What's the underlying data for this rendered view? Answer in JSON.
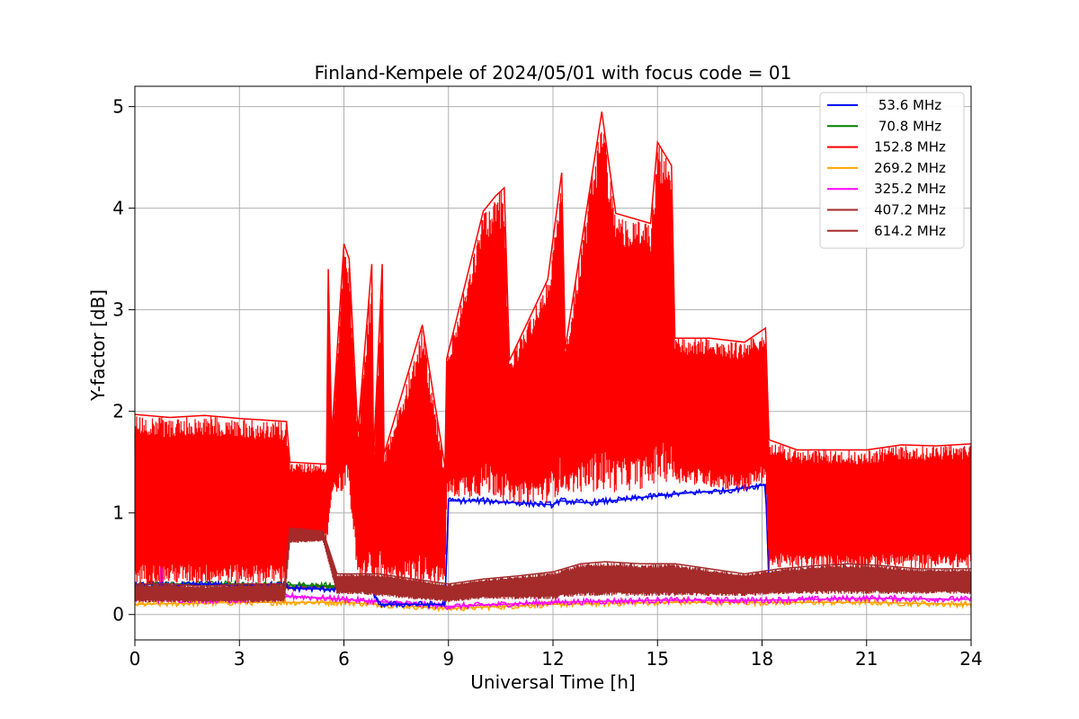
{
  "chart_data": {
    "type": "line",
    "title": "Finland-Kempele of 2024/05/01 with focus code = 01",
    "xlabel": "Universal Time [h]",
    "ylabel": "Y-factor [dB]",
    "xlim": [
      0,
      24
    ],
    "ylim": [
      -0.25,
      5.2
    ],
    "xticks": [
      0,
      3,
      6,
      9,
      12,
      15,
      18,
      21,
      24
    ],
    "xtick_labels": [
      "0",
      "3",
      "6",
      "9",
      "12",
      "15",
      "18",
      "21",
      "24"
    ],
    "yticks": [
      0,
      1,
      2,
      3,
      4,
      5
    ],
    "ytick_labels": [
      "0",
      "1",
      "2",
      "3",
      "4",
      "5"
    ],
    "grid": true,
    "legend_position": "top-right",
    "series": [
      {
        "name": "53.6 MHz",
        "color": "#0000ff",
        "x": [
          0,
          0.5,
          1,
          2,
          3,
          4.3,
          4.4,
          5.5,
          6.8,
          7.0,
          8.9,
          9.0,
          10,
          11,
          12,
          12.2,
          13,
          14,
          15,
          16,
          17,
          18.1,
          18.2,
          19,
          21,
          24
        ],
        "y": [
          0.28,
          0.3,
          0.28,
          0.3,
          0.28,
          0.3,
          0.26,
          0.25,
          0.25,
          0.1,
          0.1,
          1.12,
          1.12,
          1.1,
          1.08,
          1.12,
          1.1,
          1.13,
          1.17,
          1.2,
          1.22,
          1.28,
          0.3,
          0.3,
          0.3,
          0.3
        ]
      },
      {
        "name": "70.8 MHz",
        "color": "#008000",
        "x": [
          0,
          3,
          6,
          9,
          12,
          15,
          18,
          21,
          24
        ],
        "y": [
          0.3,
          0.3,
          0.28,
          0.2,
          0.25,
          0.28,
          0.3,
          0.3,
          0.3
        ]
      },
      {
        "name": "152.8 MHz",
        "color": "#ff0000",
        "x": [
          0,
          1,
          2,
          3,
          4.35,
          4.45,
          5.5,
          5.55,
          5.65,
          6.0,
          6.15,
          6.4,
          6.8,
          6.85,
          7.1,
          7.15,
          8.25,
          8.9,
          8.95,
          10.0,
          10.35,
          10.6,
          10.75,
          11.85,
          12.25,
          12.35,
          13.4,
          13.8,
          14.8,
          15.0,
          15.4,
          15.5,
          16.5,
          17.5,
          18.1,
          18.2,
          19.0,
          20.0,
          21.0,
          22.0,
          23.0,
          24.0
        ],
        "y": [
          1.97,
          1.94,
          1.96,
          1.93,
          1.9,
          1.5,
          1.48,
          3.4,
          1.75,
          3.65,
          3.5,
          1.8,
          3.45,
          1.55,
          3.45,
          1.58,
          2.85,
          1.45,
          2.52,
          3.97,
          4.12,
          4.2,
          2.5,
          3.3,
          4.35,
          2.62,
          4.95,
          3.95,
          3.85,
          4.65,
          4.42,
          2.72,
          2.72,
          2.68,
          2.82,
          1.72,
          1.62,
          1.62,
          1.62,
          1.67,
          1.66,
          1.68
        ],
        "y_lower": [
          0.3,
          0.3,
          0.3,
          0.3,
          0.3,
          0.72,
          0.72,
          0.72,
          1.2,
          1.2,
          1.2,
          0.3,
          0.3,
          0.3,
          0.3,
          0.3,
          0.3,
          0.3,
          1.15,
          1.15,
          1.15,
          1.1,
          1.1,
          1.1,
          1.2,
          1.2,
          1.2,
          1.2,
          1.25,
          1.3,
          1.3,
          1.3,
          1.25,
          1.2,
          1.3,
          0.45,
          0.45,
          0.45,
          0.45,
          0.45,
          0.45,
          0.45
        ]
      },
      {
        "name": "269.2 MHz",
        "color": "#ffa500",
        "x": [
          0,
          3,
          6,
          9,
          12,
          15,
          18,
          21,
          24
        ],
        "y": [
          0.1,
          0.12,
          0.12,
          0.06,
          0.1,
          0.12,
          0.12,
          0.12,
          0.1
        ]
      },
      {
        "name": "325.2 MHz",
        "color": "#ff00ff",
        "x": [
          0,
          0.7,
          0.75,
          0.8,
          3,
          4.5,
          6,
          9,
          12,
          15,
          18,
          21,
          24
        ],
        "y": [
          0.15,
          0.15,
          0.62,
          0.15,
          0.14,
          0.18,
          0.15,
          0.08,
          0.12,
          0.14,
          0.14,
          0.16,
          0.15
        ]
      },
      {
        "name": "407.2 MHz",
        "color": "#a52a2a",
        "x": [
          0,
          3,
          6,
          9,
          12,
          15,
          18,
          21,
          24
        ],
        "y": [
          0.25,
          0.25,
          0.28,
          0.2,
          0.25,
          0.28,
          0.3,
          0.3,
          0.3
        ]
      },
      {
        "name": "614.2 MHz",
        "color": "#a52a2a",
        "x": [
          0,
          1,
          2,
          3,
          4.3,
          4.45,
          5.4,
          5.8,
          6.5,
          7.0,
          8.0,
          9.0,
          10.0,
          11.0,
          12.0,
          12.8,
          13.5,
          14.5,
          15.5,
          16.5,
          17.5,
          18.5,
          19.5,
          20.5,
          21.5,
          22.5,
          23.5,
          24.0
        ],
        "y": [
          0.3,
          0.3,
          0.28,
          0.3,
          0.3,
          0.85,
          0.82,
          0.4,
          0.4,
          0.4,
          0.35,
          0.3,
          0.35,
          0.38,
          0.42,
          0.5,
          0.52,
          0.5,
          0.5,
          0.45,
          0.4,
          0.45,
          0.48,
          0.5,
          0.48,
          0.45,
          0.45,
          0.45
        ],
        "y_lower": [
          0.12,
          0.12,
          0.12,
          0.12,
          0.12,
          0.7,
          0.72,
          0.2,
          0.2,
          0.18,
          0.15,
          0.12,
          0.15,
          0.15,
          0.15,
          0.18,
          0.18,
          0.18,
          0.18,
          0.18,
          0.18,
          0.2,
          0.2,
          0.2,
          0.2,
          0.2,
          0.2,
          0.2
        ]
      }
    ]
  }
}
